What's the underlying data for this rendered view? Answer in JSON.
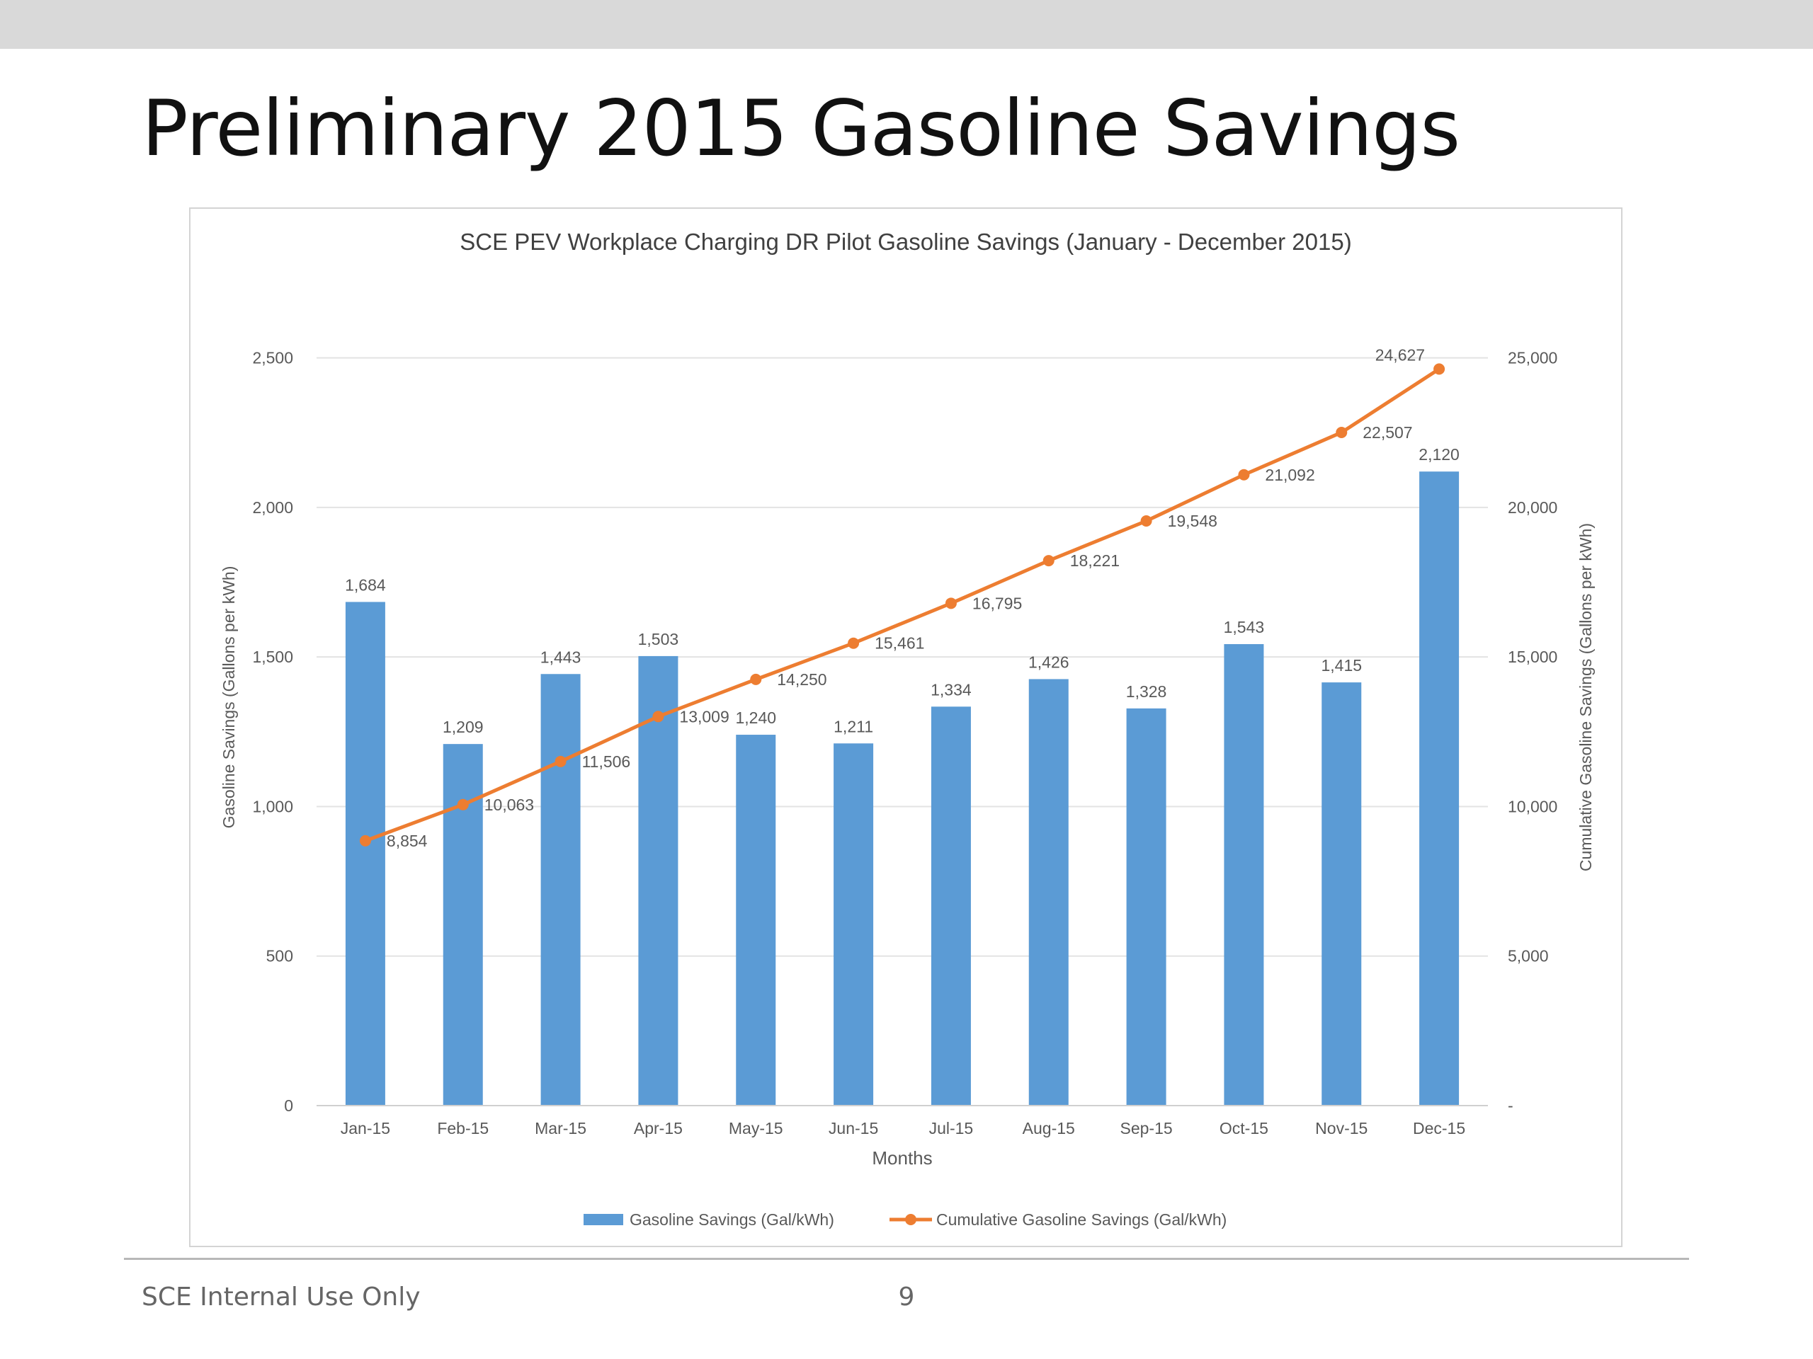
{
  "slide": {
    "title": "Preliminary 2015 Gasoline Savings",
    "footer": "SCE Internal Use Only",
    "page_number": "9"
  },
  "colors": {
    "bar": "#5b9bd5",
    "line": "#ed7d31",
    "gridline": "#e3e3e3",
    "axis_text": "#595959",
    "title_text": "#404040",
    "topbar": "#d9d9d9"
  },
  "chart_data": {
    "type": "bar",
    "title": "SCE PEV Workplace Charging DR Pilot Gasoline Savings (January - December 2015)",
    "xlabel": "Months",
    "ylabel": "Gasoline Savings (Gallons per kWh)",
    "y2label": "Cumulative Gasoline Savings (Gallons per kWh)",
    "categories": [
      "Jan-15",
      "Feb-15",
      "Mar-15",
      "Apr-15",
      "May-15",
      "Jun-15",
      "Jul-15",
      "Aug-15",
      "Sep-15",
      "Oct-15",
      "Nov-15",
      "Dec-15"
    ],
    "ylim": [
      0,
      2750
    ],
    "y2lim": [
      0,
      27500
    ],
    "yticks": [
      0,
      500,
      1000,
      1500,
      2000,
      2500
    ],
    "ytick_labels": [
      "0",
      "500",
      "1,000",
      "1,500",
      "2,000",
      "2,500"
    ],
    "y2ticks": [
      0,
      5000,
      10000,
      15000,
      20000,
      25000
    ],
    "y2tick_labels": [
      "-",
      "5,000",
      "10,000",
      "15,000",
      "20,000",
      "25,000"
    ],
    "grid": true,
    "legend_position": "bottom",
    "series": [
      {
        "name": "Gasoline Savings (Gal/kWh)",
        "type": "bar",
        "axis": "left",
        "values": [
          1684,
          1209,
          1443,
          1503,
          1240,
          1211,
          1334,
          1426,
          1328,
          1543,
          1415,
          2120
        ],
        "labels": [
          "1,684",
          "1,209",
          "1,443",
          "1,503",
          "1,240",
          "1,211",
          "1,334",
          "1,426",
          "1,328",
          "1,543",
          "1,415",
          "2,120"
        ]
      },
      {
        "name": "Cumulative Gasoline Savings (Gal/kWh)",
        "type": "line",
        "axis": "right",
        "values": [
          8854,
          10063,
          11506,
          13009,
          14250,
          15461,
          16795,
          18221,
          19548,
          21092,
          22507,
          24627
        ],
        "labels": [
          "8,854",
          "10,063",
          "11,506",
          "13,009",
          "14,250",
          "15,461",
          "16,795",
          "18,221",
          "19,548",
          "21,092",
          "22,507",
          "24,627"
        ]
      }
    ]
  }
}
